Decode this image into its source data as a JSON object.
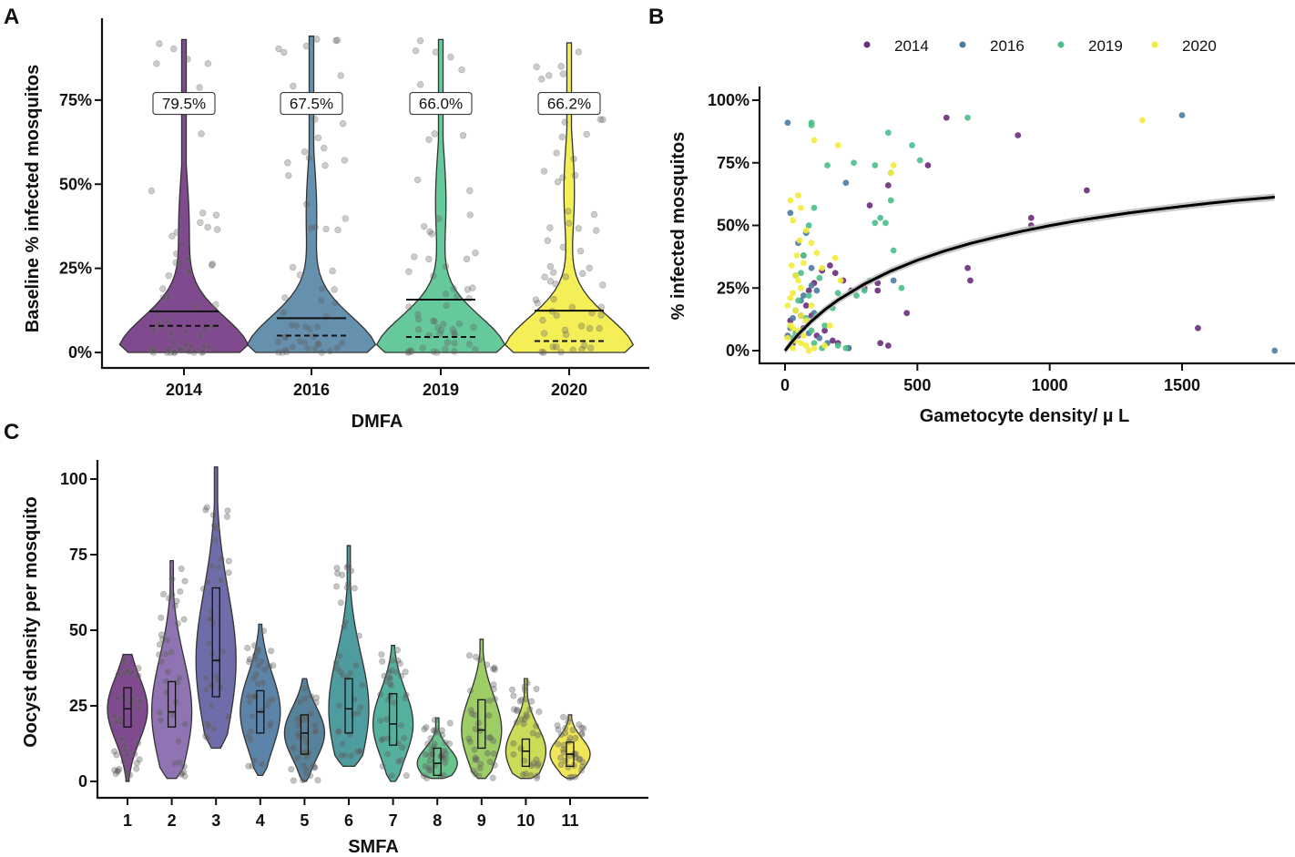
{
  "figure": {
    "panel_a": {
      "letter": "A",
      "chart_data": {
        "type": "violin",
        "title": "",
        "xlabel": "DMFA",
        "ylabel": "Baseline % infected mosquitos",
        "ylim": [
          0,
          95
        ],
        "yticks": [
          0,
          25,
          50,
          75
        ],
        "ytick_labels": [
          "0%",
          "25%",
          "50%",
          "75%"
        ],
        "categories": [
          "2014",
          "2016",
          "2019",
          "2020"
        ],
        "colors": [
          "#6a2c7a",
          "#4a7ca0",
          "#4bbf8a",
          "#f2ec3a"
        ],
        "max_values": [
          93,
          94,
          93,
          92
        ],
        "means": [
          12.2,
          10.2,
          15.7,
          12.4
        ],
        "medians": [
          7.9,
          5.0,
          4.6,
          3.4
        ],
        "annotations": [
          "79.5%",
          "67.5%",
          "66.0%",
          "66.2%"
        ],
        "annotation_y": 74
      }
    },
    "panel_b": {
      "letter": "B",
      "chart_data": {
        "type": "scatter",
        "title": "",
        "xlabel": "Gametocyte density/ µ L",
        "ylabel": "% infected mosquitos",
        "xlim": [
          -60,
          1880
        ],
        "ylim": [
          -5,
          105
        ],
        "xticks": [
          0,
          500,
          1000,
          1500
        ],
        "xtick_labels": [
          "0",
          "500",
          "1000",
          "1500"
        ],
        "yticks": [
          0,
          25,
          50,
          75,
          100
        ],
        "ytick_labels": [
          "0%",
          "25%",
          "50%",
          "75%",
          "100%"
        ],
        "legend_position": "top",
        "series": [
          {
            "name": "2014",
            "color": "#6a2c7a",
            "points": [
              [
                610,
                93
              ],
              [
                880,
                86
              ],
              [
                1140,
                64
              ],
              [
                930,
                53
              ],
              [
                930,
                50
              ],
              [
                540,
                74
              ],
              [
                690,
                33
              ],
              [
                700,
                28
              ],
              [
                460,
                15
              ],
              [
                390,
                66
              ],
              [
                320,
                58
              ],
              [
                350,
                27
              ],
              [
                350,
                24
              ],
              [
                300,
                25
              ],
              [
                250,
                24
              ],
              [
                220,
                28
              ],
              [
                190,
                31
              ],
              [
                170,
                34
              ],
              [
                140,
                32
              ],
              [
                110,
                27
              ],
              [
                90,
                24
              ],
              [
                80,
                18
              ],
              [
                70,
                9
              ],
              [
                120,
                6
              ],
              [
                150,
                8
              ],
              [
                180,
                4
              ],
              [
                200,
                3
              ],
              [
                240,
                1
              ],
              [
                360,
                3
              ],
              [
                390,
                2
              ],
              [
                1560,
                9
              ],
              [
                60,
                14
              ],
              [
                50,
                6
              ],
              [
                30,
                3
              ],
              [
                20,
                12
              ],
              [
                100,
                14
              ]
            ]
          },
          {
            "name": "2016",
            "color": "#4a7ca0",
            "points": [
              [
                10,
                91
              ],
              [
                1500,
                94
              ],
              [
                1850,
                0
              ],
              [
                410,
                28
              ],
              [
                230,
                67
              ],
              [
                20,
                55
              ],
              [
                50,
                43
              ],
              [
                70,
                38
              ],
              [
                80,
                47
              ],
              [
                100,
                26
              ],
              [
                120,
                24
              ],
              [
                60,
                20
              ],
              [
                40,
                16
              ],
              [
                30,
                13
              ],
              [
                20,
                9
              ],
              [
                10,
                6
              ],
              [
                90,
                7
              ],
              [
                130,
                5
              ],
              [
                160,
                3
              ],
              [
                100,
                33
              ],
              [
                240,
                1
              ],
              [
                40,
                30
              ],
              [
                70,
                22
              ],
              [
                110,
                15
              ]
            ]
          },
          {
            "name": "2019",
            "color": "#4bbf8a",
            "points": [
              [
                100,
                91
              ],
              [
                100,
                90
              ],
              [
                690,
                93
              ],
              [
                390,
                87
              ],
              [
                480,
                82
              ],
              [
                510,
                76
              ],
              [
                400,
                71
              ],
              [
                340,
                74
              ],
              [
                260,
                75
              ],
              [
                160,
                74
              ],
              [
                400,
                60
              ],
              [
                340,
                51
              ],
              [
                360,
                53
              ],
              [
                380,
                51
              ],
              [
                320,
                28
              ],
              [
                300,
                24
              ],
              [
                270,
                22
              ],
              [
                410,
                40
              ],
              [
                440,
                25
              ],
              [
                200,
                23
              ],
              [
                180,
                17
              ],
              [
                150,
                10
              ],
              [
                120,
                14
              ],
              [
                100,
                8
              ],
              [
                90,
                22
              ],
              [
                80,
                13
              ],
              [
                60,
                31
              ],
              [
                50,
                20
              ],
              [
                40,
                7
              ],
              [
                30,
                5
              ],
              [
                20,
                2
              ],
              [
                110,
                3
              ],
              [
                140,
                1
              ],
              [
                200,
                2
              ],
              [
                230,
                1
              ],
              [
                130,
                29
              ],
              [
                70,
                38
              ],
              [
                110,
                57
              ],
              [
                90,
                50
              ]
            ]
          },
          {
            "name": "2020",
            "color": "#f2ec3a",
            "points": [
              [
                110,
                84
              ],
              [
                200,
                82
              ],
              [
                1350,
                92
              ],
              [
                410,
                74
              ],
              [
                400,
                71
              ],
              [
                50,
                62
              ],
              [
                60,
                57
              ],
              [
                20,
                60
              ],
              [
                30,
                52
              ],
              [
                80,
                48
              ],
              [
                100,
                43
              ],
              [
                120,
                39
              ],
              [
                70,
                35
              ],
              [
                40,
                30
              ],
              [
                50,
                28
              ],
              [
                60,
                25
              ],
              [
                30,
                23
              ],
              [
                20,
                21
              ],
              [
                10,
                18
              ],
              [
                40,
                16
              ],
              [
                60,
                14
              ],
              [
                80,
                12
              ],
              [
                20,
                10
              ],
              [
                30,
                9
              ],
              [
                50,
                8
              ],
              [
                70,
                6
              ],
              [
                10,
                5
              ],
              [
                40,
                4
              ],
              [
                60,
                3
              ],
              [
                20,
                2
              ],
              [
                30,
                1
              ],
              [
                80,
                2
              ],
              [
                90,
                0
              ],
              [
                110,
                1
              ],
              [
                150,
                2
              ],
              [
                170,
                10
              ],
              [
                190,
                37
              ],
              [
                210,
                28
              ],
              [
                140,
                33
              ],
              [
                100,
                18
              ],
              [
                55,
                44
              ],
              [
                45,
                38
              ],
              [
                25,
                34
              ]
            ]
          }
        ],
        "fit": {
          "color": "#000000",
          "x": [
            0,
            25,
            50,
            100,
            150,
            200,
            300,
            400,
            500,
            600,
            700,
            800,
            900,
            1000,
            1100,
            1200,
            1300,
            1400,
            1500,
            1600,
            1700,
            1850
          ],
          "y": [
            0,
            3.4,
            6.5,
            11.8,
            16.3,
            20.2,
            26.6,
            31.8,
            36.1,
            39.7,
            42.8,
            45.4,
            47.8,
            49.9,
            51.8,
            53.4,
            55.0,
            56.3,
            57.6,
            58.8,
            59.9,
            61.3
          ]
        }
      }
    },
    "panel_c": {
      "letter": "C",
      "chart_data": {
        "type": "violin",
        "title": "",
        "xlabel": "SMFA",
        "ylabel": "Oocyst density per mosquito",
        "ylim": [
          -3,
          108
        ],
        "yticks": [
          0,
          25,
          50,
          75,
          100
        ],
        "ytick_labels": [
          "0",
          "25",
          "50",
          "75",
          "100"
        ],
        "categories": [
          "1",
          "2",
          "3",
          "4",
          "5",
          "6",
          "7",
          "8",
          "9",
          "10",
          "11"
        ],
        "colors": [
          "#6a2c7a",
          "#7b5ba6",
          "#56549a",
          "#3f6d99",
          "#386c8a",
          "#2f8a8f",
          "#37a38e",
          "#4fba78",
          "#8cc44a",
          "#c2d33a",
          "#efe23a"
        ],
        "min_values": [
          0,
          1,
          11,
          2,
          0,
          5,
          0,
          1,
          1,
          1,
          1
        ],
        "max_values": [
          42,
          73,
          104,
          52,
          34,
          78,
          45,
          21,
          47,
          34,
          22
        ],
        "q1": [
          18,
          18,
          28,
          16,
          9,
          16,
          12,
          2,
          11,
          5,
          5
        ],
        "medians": [
          24,
          23,
          40,
          23,
          16,
          24,
          19,
          6,
          17,
          10,
          9
        ],
        "q3": [
          31,
          33,
          64,
          30,
          22,
          34,
          29,
          11,
          27,
          14,
          13
        ]
      }
    }
  }
}
